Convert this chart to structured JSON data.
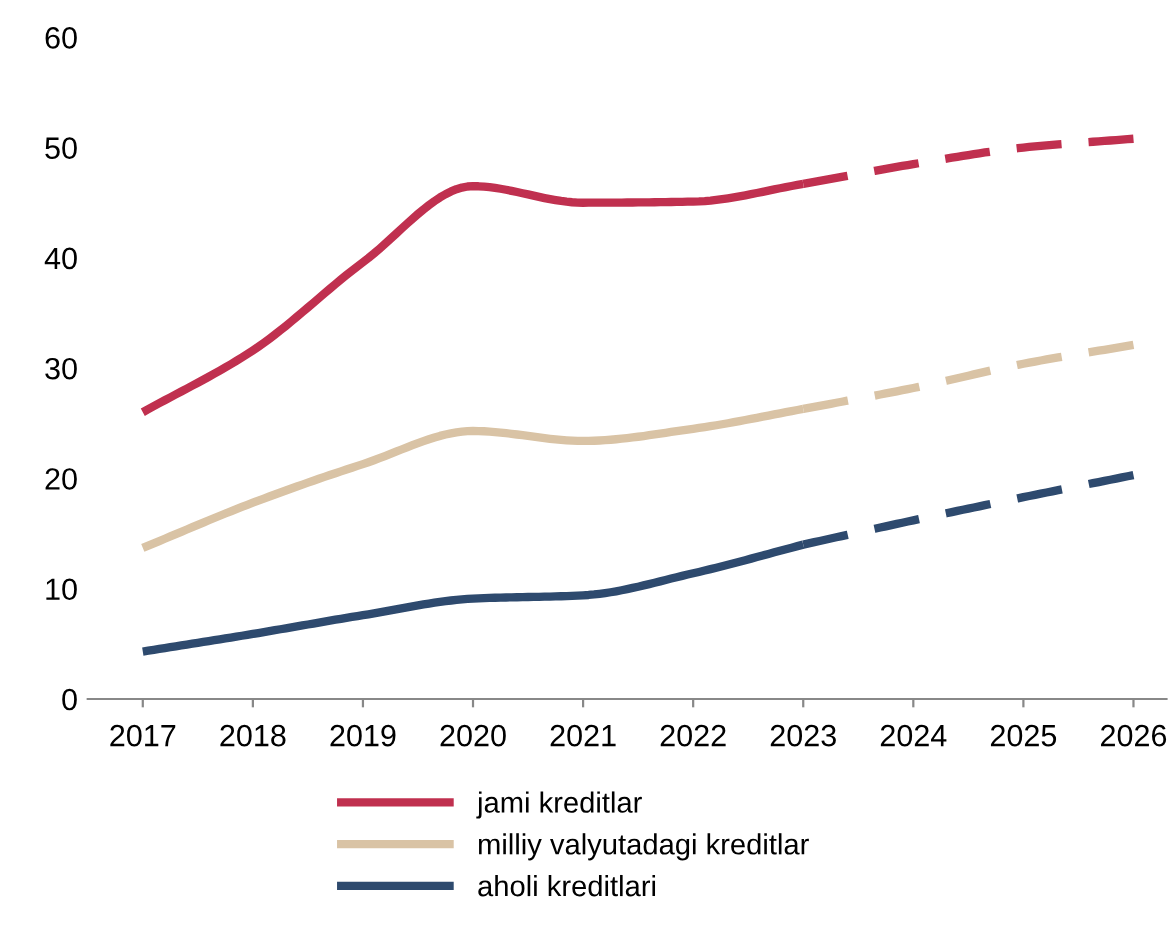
{
  "chart_data": {
    "type": "line",
    "x": [
      2017,
      2018,
      2019,
      2020,
      2021,
      2022,
      2023,
      2024,
      2025,
      2026
    ],
    "xlim": [
      2016.5,
      2026.3
    ],
    "xticks": [
      2017,
      2018,
      2019,
      2020,
      2021,
      2022,
      2023,
      2024,
      2025,
      2026
    ],
    "series": [
      {
        "name": "jami kreditlar",
        "color": "#c0304f",
        "line_style": "solid",
        "values": [
          26,
          31.6,
          39.6,
          46.5,
          45,
          45.1,
          46.7,
          null,
          null,
          null
        ]
      },
      {
        "color": "#c0304f",
        "line_style": "dashed",
        "values": [
          null,
          null,
          null,
          null,
          null,
          null,
          46.7,
          48.5,
          50,
          50.8
        ]
      },
      {
        "name": "milliy valyutadagi kreditlar",
        "color": "#d9c3a5",
        "line_style": "solid",
        "values": [
          13.7,
          17.8,
          21.3,
          24.3,
          23.4,
          24.5,
          26.3,
          null,
          null,
          null
        ]
      },
      {
        "color": "#d9c3a5",
        "line_style": "dashed",
        "values": [
          null,
          null,
          null,
          null,
          null,
          null,
          26.3,
          28.2,
          30.4,
          32.1
        ]
      },
      {
        "name": "aholi kreditlari",
        "color": "#2e4a6e",
        "line_style": "solid",
        "values": [
          4.3,
          5.9,
          7.6,
          9.1,
          9.4,
          11.4,
          14,
          null,
          null,
          null
        ]
      },
      {
        "color": "#2e4a6e",
        "line_style": "dashed",
        "values": [
          null,
          null,
          null,
          null,
          null,
          null,
          14,
          16.2,
          18.3,
          20.3
        ]
      }
    ],
    "ylim": [
      0,
      60
    ],
    "yticks": [
      0,
      10,
      20,
      30,
      40,
      50,
      60
    ],
    "grid": false,
    "legend": "bottom",
    "marker": "none"
  }
}
